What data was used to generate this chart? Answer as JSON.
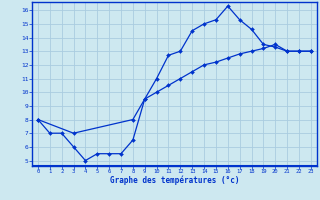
{
  "xlabel": "Graphe des températures (°c)",
  "bg_color": "#cde8f0",
  "grid_color": "#aacce0",
  "line_color": "#0033cc",
  "x_ticks": [
    0,
    1,
    2,
    3,
    4,
    5,
    6,
    7,
    8,
    9,
    10,
    11,
    12,
    13,
    14,
    15,
    16,
    17,
    18,
    19,
    20,
    21,
    22,
    23
  ],
  "y_ticks": [
    5,
    6,
    7,
    8,
    9,
    10,
    11,
    12,
    13,
    14,
    15,
    16
  ],
  "ylim": [
    4.6,
    16.6
  ],
  "xlim": [
    -0.5,
    23.5
  ],
  "line1_x": [
    0,
    1,
    2,
    3,
    4,
    5,
    6,
    7,
    8,
    9,
    10,
    11,
    12,
    13,
    14,
    15,
    16,
    17,
    18,
    19,
    20,
    21,
    22,
    23
  ],
  "line1_y": [
    8,
    7,
    7,
    6,
    5,
    5.5,
    5.5,
    5.5,
    6.5,
    9.5,
    11,
    12.7,
    13,
    14.5,
    15,
    15.3,
    16.3,
    15.3,
    14.6,
    13.5,
    13.3,
    13,
    13,
    13
  ],
  "line2_x": [
    0,
    3,
    8,
    9,
    10,
    11,
    12,
    13,
    14,
    15,
    16,
    17,
    18,
    19,
    20,
    21,
    22,
    23
  ],
  "line2_y": [
    8,
    7,
    8,
    9.5,
    10,
    10.5,
    11,
    11.5,
    12,
    12.2,
    12.5,
    12.8,
    13,
    13.2,
    13.5,
    13,
    13,
    13
  ]
}
